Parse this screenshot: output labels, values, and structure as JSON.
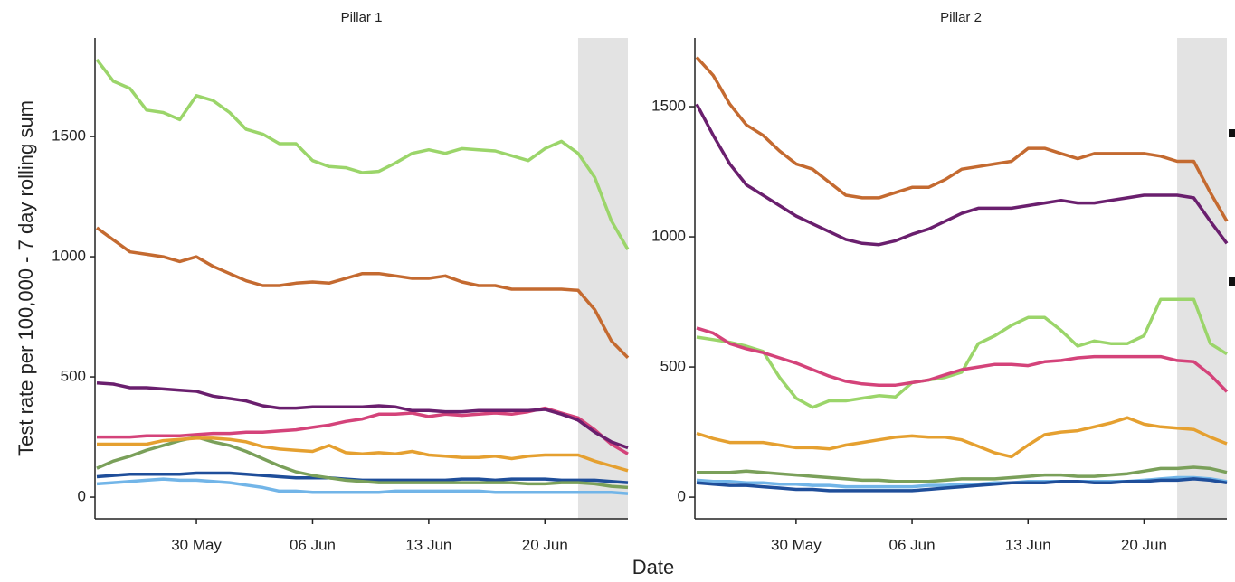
{
  "ylabel": "Test rate per 100,000 - 7 day rolling sum",
  "xlabel": "Date",
  "chart_data": [
    {
      "type": "line",
      "title": "Pillar 1",
      "categories": [
        null,
        null,
        null,
        null,
        null,
        null,
        "30 May",
        null,
        null,
        null,
        null,
        null,
        null,
        "06 Jun",
        null,
        null,
        null,
        null,
        null,
        null,
        "13 Jun",
        null,
        null,
        null,
        null,
        null,
        null,
        "20 Jun",
        null,
        null,
        null,
        null,
        null
      ],
      "ylim": [
        -90,
        1910
      ],
      "yticks": [
        0,
        500,
        1000,
        1500
      ],
      "shade": [
        29,
        32
      ],
      "series": [
        {
          "color": "#9bd56a",
          "values": [
            1820,
            1730,
            1700,
            1610,
            1600,
            1570,
            1670,
            1650,
            1600,
            1530,
            1510,
            1470,
            1470,
            1400,
            1375,
            1370,
            1350,
            1355,
            1390,
            1430,
            1445,
            1430,
            1450,
            1445,
            1440,
            1420,
            1400,
            1450,
            1480,
            1430,
            1330,
            1150,
            1030
          ]
        },
        {
          "color": "#c46a30",
          "values": [
            1120,
            1070,
            1020,
            1010,
            1000,
            980,
            1000,
            960,
            930,
            900,
            880,
            880,
            890,
            895,
            890,
            910,
            930,
            930,
            920,
            910,
            910,
            920,
            895,
            880,
            880,
            865,
            865,
            865,
            865,
            860,
            780,
            650,
            580
          ]
        },
        {
          "color": "#6a1f6e",
          "values": [
            475,
            470,
            455,
            455,
            450,
            445,
            440,
            420,
            410,
            400,
            380,
            370,
            370,
            375,
            375,
            375,
            375,
            380,
            375,
            360,
            360,
            355,
            355,
            360,
            360,
            360,
            360,
            365,
            345,
            320,
            270,
            230,
            205
          ]
        },
        {
          "color": "#d4437a",
          "values": [
            250,
            250,
            250,
            255,
            255,
            255,
            260,
            265,
            265,
            270,
            270,
            275,
            280,
            290,
            300,
            315,
            325,
            345,
            345,
            350,
            335,
            345,
            340,
            345,
            350,
            345,
            355,
            370,
            350,
            330,
            280,
            220,
            180
          ]
        },
        {
          "color": "#e5a030",
          "values": [
            220,
            220,
            220,
            220,
            235,
            240,
            245,
            245,
            240,
            230,
            210,
            200,
            195,
            190,
            215,
            185,
            180,
            185,
            180,
            190,
            175,
            170,
            165,
            165,
            170,
            160,
            170,
            175,
            175,
            175,
            150,
            130,
            110
          ]
        },
        {
          "color": "#7aa05a",
          "values": [
            120,
            150,
            170,
            195,
            215,
            235,
            250,
            230,
            215,
            190,
            160,
            130,
            105,
            90,
            80,
            70,
            65,
            60,
            60,
            60,
            60,
            60,
            60,
            60,
            60,
            60,
            55,
            55,
            60,
            60,
            55,
            45,
            40
          ]
        },
        {
          "color": "#1f4e9a",
          "values": [
            85,
            90,
            95,
            95,
            95,
            95,
            100,
            100,
            100,
            95,
            90,
            85,
            80,
            80,
            80,
            75,
            70,
            70,
            70,
            70,
            70,
            70,
            75,
            75,
            70,
            75,
            75,
            75,
            70,
            70,
            70,
            65,
            60
          ]
        },
        {
          "color": "#72b5e8",
          "values": [
            55,
            60,
            65,
            70,
            75,
            70,
            70,
            65,
            60,
            50,
            40,
            25,
            25,
            20,
            20,
            20,
            20,
            20,
            25,
            25,
            25,
            25,
            25,
            25,
            20,
            20,
            20,
            20,
            20,
            20,
            20,
            20,
            15
          ]
        }
      ]
    },
    {
      "type": "line",
      "title": "Pillar 2",
      "categories": [
        null,
        null,
        null,
        null,
        null,
        null,
        "30 May",
        null,
        null,
        null,
        null,
        null,
        null,
        "06 Jun",
        null,
        null,
        null,
        null,
        null,
        null,
        "13 Jun",
        null,
        null,
        null,
        null,
        null,
        null,
        "20 Jun",
        null,
        null,
        null,
        null,
        null
      ],
      "ylim": [
        -83,
        1764
      ],
      "yticks": [
        0,
        500,
        1000,
        1500
      ],
      "shade": [
        29,
        32
      ],
      "series": [
        {
          "color": "#c46a30",
          "values": [
            1690,
            1620,
            1510,
            1430,
            1390,
            1330,
            1280,
            1260,
            1210,
            1160,
            1150,
            1150,
            1170,
            1190,
            1190,
            1220,
            1260,
            1270,
            1280,
            1290,
            1340,
            1340,
            1320,
            1300,
            1320,
            1320,
            1320,
            1320,
            1310,
            1290,
            1290,
            1170,
            1060
          ]
        },
        {
          "color": "#6a1f6e",
          "values": [
            1510,
            1390,
            1280,
            1200,
            1160,
            1120,
            1080,
            1050,
            1020,
            990,
            975,
            970,
            985,
            1010,
            1030,
            1060,
            1090,
            1110,
            1110,
            1110,
            1120,
            1130,
            1140,
            1130,
            1130,
            1140,
            1150,
            1160,
            1160,
            1160,
            1150,
            1060,
            975
          ]
        },
        {
          "color": "#d4437a",
          "values": [
            650,
            630,
            590,
            570,
            555,
            535,
            515,
            490,
            465,
            445,
            435,
            430,
            430,
            440,
            450,
            470,
            490,
            500,
            510,
            510,
            505,
            520,
            525,
            535,
            540,
            540,
            540,
            540,
            540,
            525,
            520,
            470,
            405
          ]
        },
        {
          "color": "#9bd56a",
          "values": [
            615,
            605,
            595,
            580,
            560,
            460,
            380,
            345,
            370,
            370,
            380,
            390,
            385,
            440,
            450,
            460,
            480,
            590,
            620,
            660,
            690,
            690,
            640,
            580,
            600,
            590,
            590,
            620,
            760,
            760,
            760,
            590,
            550
          ]
        },
        {
          "color": "#e5a030",
          "values": [
            245,
            225,
            210,
            210,
            210,
            200,
            190,
            190,
            185,
            200,
            210,
            220,
            230,
            235,
            230,
            230,
            220,
            195,
            170,
            155,
            200,
            240,
            250,
            255,
            270,
            285,
            305,
            280,
            270,
            265,
            260,
            230,
            205
          ]
        },
        {
          "color": "#7aa05a",
          "values": [
            95,
            95,
            95,
            100,
            95,
            90,
            85,
            80,
            75,
            70,
            65,
            65,
            60,
            60,
            60,
            65,
            70,
            70,
            70,
            75,
            80,
            85,
            85,
            80,
            80,
            85,
            90,
            100,
            110,
            110,
            115,
            110,
            95
          ]
        },
        {
          "color": "#1f4e9a",
          "values": [
            55,
            50,
            45,
            45,
            40,
            35,
            30,
            30,
            25,
            25,
            25,
            25,
            25,
            25,
            30,
            35,
            40,
            45,
            50,
            55,
            55,
            55,
            60,
            60,
            55,
            55,
            60,
            60,
            65,
            65,
            70,
            65,
            55
          ]
        },
        {
          "color": "#72b5e8",
          "values": [
            65,
            60,
            60,
            55,
            55,
            50,
            50,
            45,
            45,
            40,
            40,
            40,
            40,
            40,
            45,
            45,
            50,
            50,
            55,
            55,
            60,
            60,
            60,
            60,
            60,
            60,
            60,
            65,
            70,
            75,
            75,
            70,
            60
          ]
        }
      ]
    }
  ]
}
